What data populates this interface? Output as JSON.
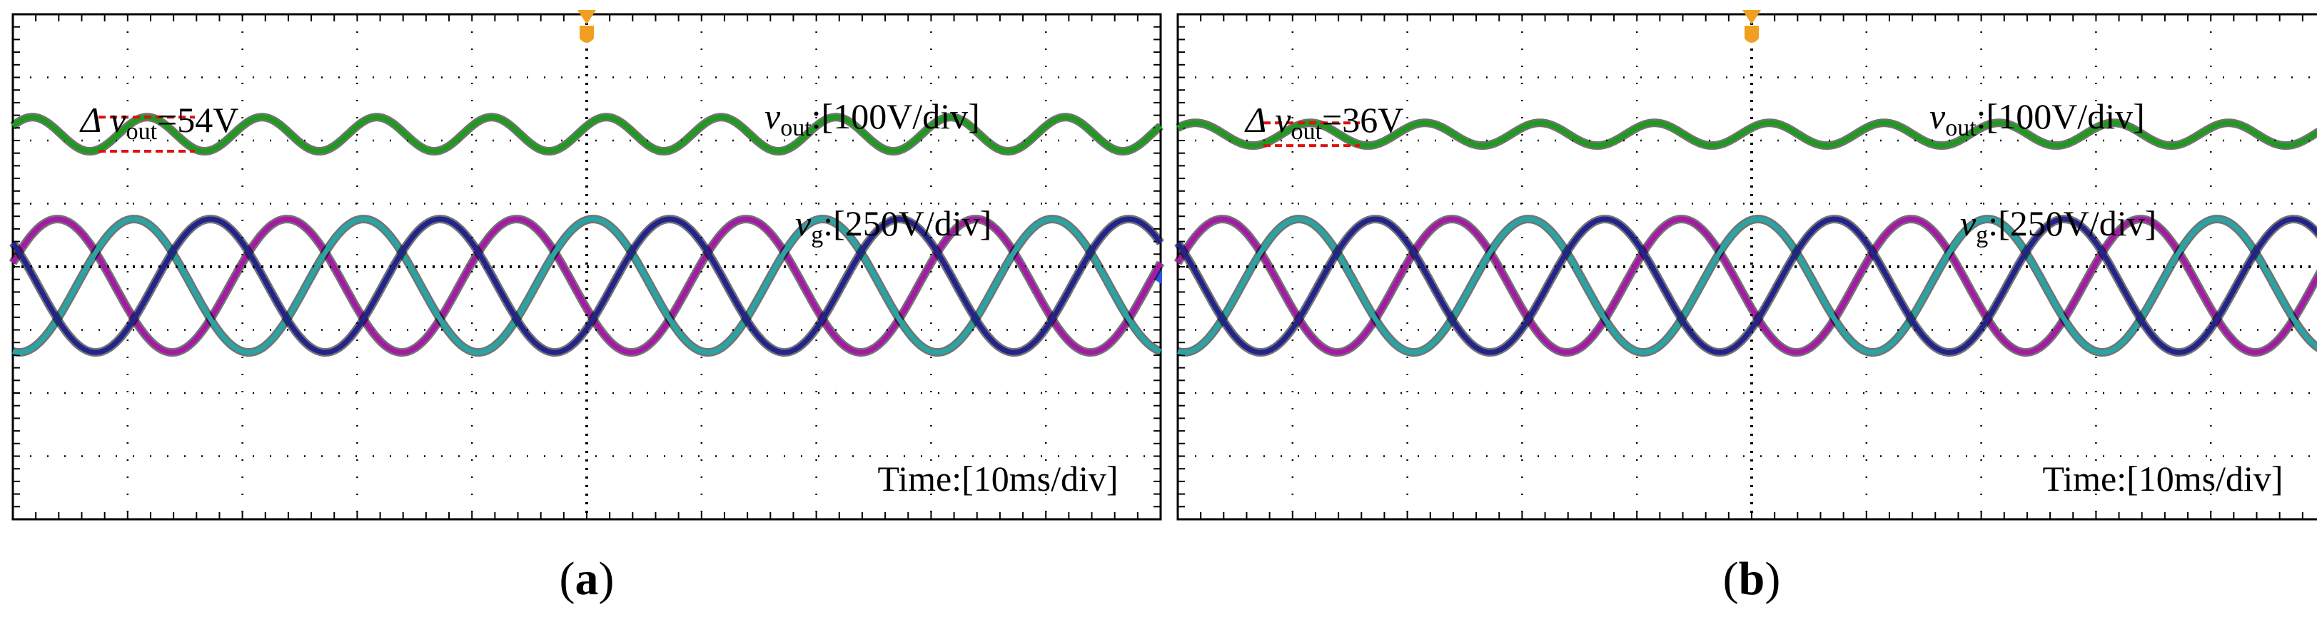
{
  "figure": {
    "background": "#ffffff"
  },
  "colors": {
    "vout": "#1e9a1e",
    "phase_a": "#a51aa5",
    "phase_b": "#2aa3a3",
    "phase_c": "#23238c",
    "grid": "#000000",
    "dv_marker": "#e01010",
    "trigger": "#f0a020",
    "ground_marker": "#2b55e0"
  },
  "chart_data": [
    {
      "type": "line",
      "panel_label": "a",
      "scope_grid": {
        "h_div": 10,
        "v_div": 8
      },
      "annotations": {
        "delta_prefix": "Δ",
        "delta_var": "v",
        "delta_sub": "out",
        "delta_value": "=54V",
        "vout_var": "v",
        "vout_sub": "out",
        "vout_scale": ":[100V/div]",
        "vg_var": "v",
        "vg_sub": "g",
        "vg_scale": ":[250V/div]",
        "time_label": "Time:[10ms/div]"
      },
      "time_range_ms": [
        0,
        100
      ],
      "series": [
        {
          "name": "v_out",
          "color_key": "vout",
          "scale": "100V/div",
          "offset_div": 2.1,
          "dc_V": 0,
          "ripple_pp_V": 54,
          "ripple_freq_Hz": 100
        },
        {
          "name": "v_ga",
          "color_key": "phase_a",
          "scale": "250V/div",
          "offset_div": -0.3,
          "amplitude_V": 264,
          "freq_Hz": 50,
          "phase_deg": 0
        },
        {
          "name": "v_gb",
          "color_key": "phase_b",
          "scale": "250V/div",
          "offset_div": -0.3,
          "amplitude_V": 264,
          "freq_Hz": 50,
          "phase_deg": -120
        },
        {
          "name": "v_gc",
          "color_key": "phase_c",
          "scale": "250V/div",
          "offset_div": -0.3,
          "amplitude_V": 264,
          "freq_Hz": 50,
          "phase_deg": 120
        }
      ]
    },
    {
      "type": "line",
      "panel_label": "b",
      "scope_grid": {
        "h_div": 10,
        "v_div": 8
      },
      "annotations": {
        "delta_prefix": "Δ",
        "delta_var": "v",
        "delta_sub": "out",
        "delta_value": "=36V",
        "vout_var": "v",
        "vout_sub": "out",
        "vout_scale": ":[100V/div]",
        "vg_var": "v",
        "vg_sub": "g",
        "vg_scale": ":[250V/div]",
        "time_label": "Time:[10ms/div]"
      },
      "time_range_ms": [
        0,
        100
      ],
      "series": [
        {
          "name": "v_out",
          "color_key": "vout",
          "scale": "100V/div",
          "offset_div": 2.1,
          "dc_V": 0,
          "ripple_pp_V": 36,
          "ripple_freq_Hz": 100
        },
        {
          "name": "v_ga",
          "color_key": "phase_a",
          "scale": "250V/div",
          "offset_div": -0.3,
          "amplitude_V": 264,
          "freq_Hz": 50,
          "phase_deg": 0
        },
        {
          "name": "v_gb",
          "color_key": "phase_b",
          "scale": "250V/div",
          "offset_div": -0.3,
          "amplitude_V": 264,
          "freq_Hz": 50,
          "phase_deg": -120
        },
        {
          "name": "v_gc",
          "color_key": "phase_c",
          "scale": "250V/div",
          "offset_div": -0.3,
          "amplitude_V": 264,
          "freq_Hz": 50,
          "phase_deg": 120
        }
      ]
    }
  ]
}
